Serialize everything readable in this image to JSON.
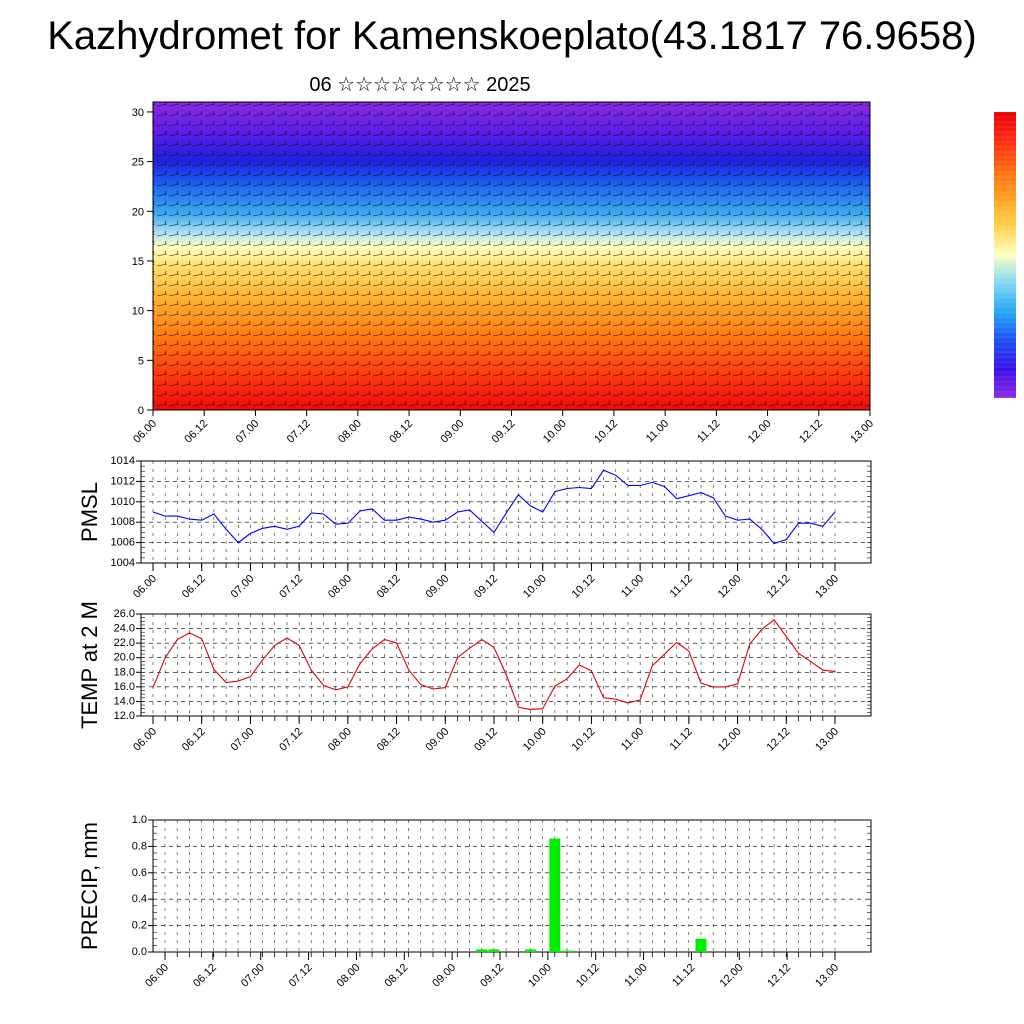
{
  "title": "Kazhydromet for Kamenskoeplato(43.1817 76.9658)",
  "subtitle": "06 ☆☆☆☆☆☆☆☆ 2025",
  "chart_data": [
    {
      "type": "heatmap",
      "name": "cross-section",
      "x_ticks": [
        "06.00",
        "06.12",
        "07.00",
        "07.12",
        "08.00",
        "08.12",
        "09.00",
        "09.12",
        "10.00",
        "10.12",
        "11.00",
        "11.12",
        "12.00",
        "12.12",
        "13.00"
      ],
      "y_ticks": [
        0,
        5,
        10,
        15,
        20,
        25,
        30
      ],
      "ylim": [
        0,
        31
      ],
      "colorbar": [
        "#8a2be2",
        "#3b10e8",
        "#1a4ff0",
        "#24a6f2",
        "#7fd6f5",
        "#ffffc0",
        "#ffd24d",
        "#ffa020",
        "#ff6a10",
        "#ff2a10",
        "#e8000a"
      ]
    },
    {
      "type": "line",
      "ylabel": "PMSL",
      "color": "#0000ff",
      "ylim": [
        1004,
        1014
      ],
      "y_ticks": [
        "1004",
        "1006",
        "1008",
        "1010",
        "1012",
        "1014"
      ],
      "x_ticks": [
        "06.00",
        "06.12",
        "07.00",
        "07.12",
        "08.00",
        "08.12",
        "09.00",
        "09.12",
        "10.00",
        "10.12",
        "11.00",
        "11.12",
        "12.00",
        "12.12",
        "13.00"
      ],
      "values": [
        1009.0,
        1008.6,
        1008.6,
        1008.3,
        1008.2,
        1008.8,
        1007.3,
        1006.0,
        1006.9,
        1007.4,
        1007.6,
        1007.3,
        1007.6,
        1008.9,
        1008.8,
        1007.8,
        1007.9,
        1009.1,
        1009.3,
        1008.2,
        1008.2,
        1008.5,
        1008.3,
        1008.0,
        1008.2,
        1009.0,
        1009.2,
        1008.1,
        1007.0,
        1008.9,
        1010.7,
        1009.6,
        1009.0,
        1011.0,
        1011.3,
        1011.4,
        1011.3,
        1013.1,
        1012.6,
        1011.6,
        1011.6,
        1011.9,
        1011.5,
        1010.3,
        1010.6,
        1010.9,
        1010.4,
        1008.6,
        1008.2,
        1008.3,
        1007.3,
        1005.9,
        1006.3,
        1007.9,
        1007.9,
        1007.6,
        1009.0
      ]
    },
    {
      "type": "line",
      "ylabel": "TEMP at 2 M",
      "color": "#e00000",
      "ylim": [
        12,
        26
      ],
      "y_ticks": [
        "12.0",
        "14.0",
        "16.0",
        "18.0",
        "20.0",
        "22.0",
        "24.0",
        "26.0"
      ],
      "x_ticks": [
        "06.00",
        "06.12",
        "07.00",
        "07.12",
        "08.00",
        "08.12",
        "09.00",
        "09.12",
        "10.00",
        "10.12",
        "11.00",
        "11.12",
        "12.00",
        "12.12",
        "13.00"
      ],
      "values": [
        15.9,
        20.0,
        22.5,
        23.4,
        22.6,
        18.4,
        16.6,
        16.8,
        17.4,
        19.7,
        21.7,
        22.7,
        21.7,
        18.3,
        16.2,
        15.6,
        16.0,
        19.2,
        21.2,
        22.5,
        22.0,
        18.3,
        16.3,
        15.7,
        15.9,
        20.0,
        21.3,
        22.5,
        21.4,
        17.7,
        13.2,
        12.9,
        13.0,
        16.1,
        17.1,
        19.0,
        18.2,
        14.5,
        14.3,
        13.8,
        14.2,
        18.9,
        20.5,
        22.1,
        20.9,
        16.5,
        16.0,
        16.0,
        16.4,
        21.9,
        23.9,
        25.2,
        22.9,
        20.6,
        19.5,
        18.3,
        18.1
      ]
    },
    {
      "type": "bar",
      "ylabel": "PRECIP, mm",
      "color": "#00ee00",
      "ylim": [
        0,
        1.0
      ],
      "y_ticks": [
        "0.0",
        "0.2",
        "0.4",
        "0.6",
        "0.8",
        "1.0"
      ],
      "x_ticks": [
        "06.00",
        "06.12",
        "07.00",
        "07.12",
        "08.00",
        "08.12",
        "09.00",
        "09.12",
        "10.00",
        "10.12",
        "11.00",
        "11.12",
        "12.00",
        "12.12",
        "13.00"
      ],
      "values": [
        0,
        0,
        0,
        0,
        0,
        0,
        0,
        0,
        0,
        0,
        0,
        0,
        0,
        0,
        0,
        0,
        0,
        0,
        0,
        0,
        0,
        0,
        0,
        0,
        0,
        0,
        0.02,
        0.02,
        0,
        0,
        0.02,
        0,
        0.86,
        0.01,
        0,
        0,
        0,
        0,
        0,
        0,
        0,
        0,
        0,
        0,
        0.1,
        0,
        0,
        0,
        0,
        0,
        0,
        0,
        0,
        0,
        0,
        0
      ]
    }
  ]
}
